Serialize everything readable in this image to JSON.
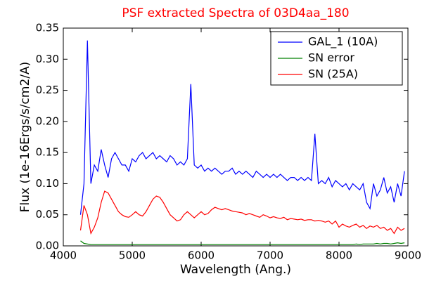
{
  "chart_data": {
    "type": "line",
    "title": "PSF extracted Spectra of 03D4aa_180",
    "x_label": "Wavelength (Ang.)",
    "y_label": "Flux (1e-16Ergs/s/cm2/A)",
    "xlim": [
      4000,
      9000
    ],
    "xticks": [
      4000,
      5000,
      6000,
      7000,
      8000,
      9000
    ],
    "ylim": [
      0,
      0.35
    ],
    "yticks": [
      {
        "value": 0,
        "label": "0.00"
      },
      {
        "value": 0.05,
        "label": "0.05"
      },
      {
        "value": 0.1,
        "label": "0.10"
      },
      {
        "value": 0.15,
        "label": "0.15"
      },
      {
        "value": 0.2,
        "label": "0.20"
      },
      {
        "value": 0.25,
        "label": "0.25"
      },
      {
        "value": 0.3,
        "label": "0.30"
      },
      {
        "value": 0.35,
        "label": "0.35"
      }
    ],
    "legend": "upper right",
    "x": [
      4250,
      4300,
      4350,
      4400,
      4450,
      4500,
      4550,
      4600,
      4650,
      4700,
      4750,
      4800,
      4850,
      4900,
      4950,
      5000,
      5050,
      5100,
      5150,
      5200,
      5250,
      5300,
      5350,
      5400,
      5450,
      5500,
      5550,
      5600,
      5650,
      5700,
      5750,
      5800,
      5850,
      5900,
      5950,
      6000,
      6050,
      6100,
      6150,
      6200,
      6250,
      6300,
      6350,
      6400,
      6450,
      6500,
      6550,
      6600,
      6650,
      6700,
      6750,
      6800,
      6850,
      6900,
      6950,
      7000,
      7050,
      7100,
      7150,
      7200,
      7250,
      7300,
      7350,
      7400,
      7450,
      7500,
      7550,
      7600,
      7650,
      7700,
      7750,
      7800,
      7850,
      7900,
      7950,
      8000,
      8050,
      8100,
      8150,
      8200,
      8250,
      8300,
      8350,
      8400,
      8450,
      8500,
      8550,
      8600,
      8650,
      8700,
      8750,
      8800,
      8850,
      8900,
      8950
    ],
    "series": [
      {
        "name": "GAL_1 (10A)",
        "color": "#0000ff",
        "values": [
          0.05,
          0.1,
          0.33,
          0.1,
          0.13,
          0.12,
          0.155,
          0.13,
          0.11,
          0.14,
          0.15,
          0.14,
          0.13,
          0.13,
          0.12,
          0.14,
          0.135,
          0.145,
          0.15,
          0.14,
          0.145,
          0.15,
          0.14,
          0.145,
          0.14,
          0.135,
          0.145,
          0.14,
          0.13,
          0.135,
          0.13,
          0.14,
          0.26,
          0.13,
          0.125,
          0.13,
          0.12,
          0.125,
          0.12,
          0.125,
          0.12,
          0.115,
          0.12,
          0.12,
          0.125,
          0.115,
          0.12,
          0.115,
          0.12,
          0.115,
          0.11,
          0.12,
          0.115,
          0.11,
          0.115,
          0.11,
          0.115,
          0.11,
          0.115,
          0.11,
          0.105,
          0.11,
          0.11,
          0.105,
          0.11,
          0.105,
          0.11,
          0.105,
          0.18,
          0.1,
          0.105,
          0.1,
          0.11,
          0.095,
          0.105,
          0.1,
          0.095,
          0.1,
          0.09,
          0.1,
          0.095,
          0.09,
          0.1,
          0.07,
          0.06,
          0.1,
          0.08,
          0.09,
          0.11,
          0.085,
          0.095,
          0.07,
          0.1,
          0.08,
          0.12
        ]
      },
      {
        "name": "SN error",
        "color": "#008000",
        "values": [
          0.008,
          0.004,
          0.003,
          0.002,
          0.002,
          0.002,
          0.002,
          0.002,
          0.002,
          0.002,
          0.002,
          0.002,
          0.002,
          0.002,
          0.002,
          0.002,
          0.002,
          0.002,
          0.002,
          0.002,
          0.002,
          0.002,
          0.002,
          0.002,
          0.002,
          0.002,
          0.002,
          0.002,
          0.002,
          0.002,
          0.002,
          0.002,
          0.002,
          0.002,
          0.002,
          0.002,
          0.002,
          0.002,
          0.002,
          0.002,
          0.002,
          0.002,
          0.002,
          0.002,
          0.002,
          0.002,
          0.002,
          0.002,
          0.002,
          0.002,
          0.002,
          0.002,
          0.002,
          0.002,
          0.002,
          0.002,
          0.002,
          0.002,
          0.002,
          0.002,
          0.002,
          0.002,
          0.002,
          0.002,
          0.002,
          0.002,
          0.002,
          0.002,
          0.002,
          0.002,
          0.002,
          0.002,
          0.002,
          0.002,
          0.002,
          0.002,
          0.002,
          0.002,
          0.002,
          0.002,
          0.003,
          0.002,
          0.003,
          0.003,
          0.003,
          0.003,
          0.004,
          0.003,
          0.004,
          0.004,
          0.003,
          0.004,
          0.005,
          0.004,
          0.005
        ]
      },
      {
        "name": "SN (25A)",
        "color": "#ff0000",
        "values": [
          0.025,
          0.065,
          0.05,
          0.02,
          0.03,
          0.045,
          0.07,
          0.088,
          0.085,
          0.075,
          0.065,
          0.055,
          0.05,
          0.047,
          0.046,
          0.05,
          0.055,
          0.05,
          0.048,
          0.055,
          0.065,
          0.075,
          0.08,
          0.078,
          0.07,
          0.06,
          0.05,
          0.045,
          0.04,
          0.042,
          0.05,
          0.055,
          0.05,
          0.045,
          0.05,
          0.055,
          0.05,
          0.052,
          0.058,
          0.062,
          0.06,
          0.058,
          0.06,
          0.058,
          0.056,
          0.055,
          0.054,
          0.053,
          0.05,
          0.052,
          0.05,
          0.048,
          0.046,
          0.05,
          0.048,
          0.045,
          0.047,
          0.045,
          0.044,
          0.046,
          0.042,
          0.044,
          0.043,
          0.042,
          0.043,
          0.041,
          0.042,
          0.042,
          0.04,
          0.041,
          0.04,
          0.038,
          0.04,
          0.035,
          0.04,
          0.03,
          0.035,
          0.032,
          0.03,
          0.033,
          0.035,
          0.03,
          0.033,
          0.028,
          0.032,
          0.03,
          0.033,
          0.028,
          0.03,
          0.025,
          0.028,
          0.02,
          0.03,
          0.025,
          0.028
        ]
      }
    ]
  }
}
